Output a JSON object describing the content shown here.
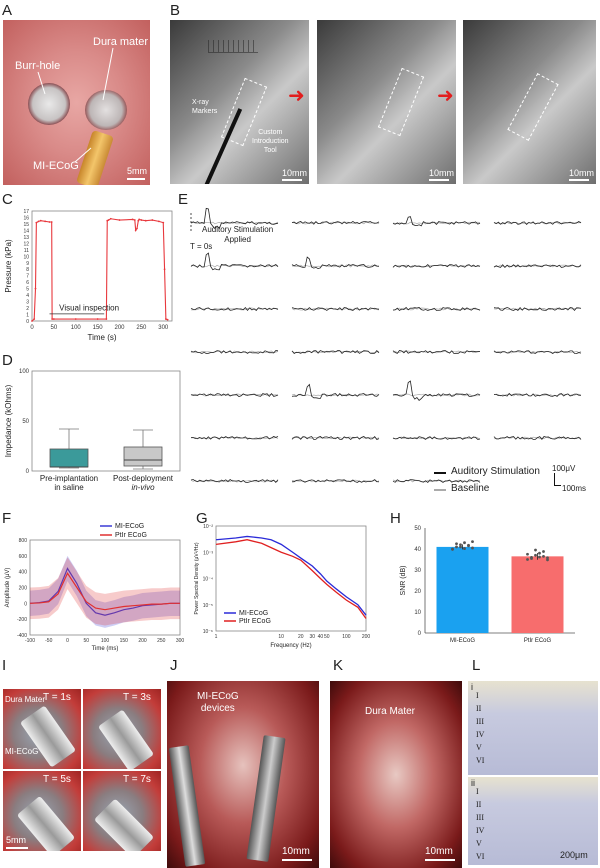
{
  "panels": {
    "A": {
      "label": "A",
      "burr_hole": "Burr-hole",
      "dura": "Dura mater",
      "device": "MI-ECoG",
      "scale": "5mm"
    },
    "B": {
      "label": "B",
      "markers": "X-ray\nMarkers",
      "tool": "Custom\nIntroduction\nTool",
      "scale": "10mm"
    },
    "C": {
      "label": "C",
      "annotation": "Visual inspection"
    },
    "D": {
      "label": "D"
    },
    "E": {
      "label": "E",
      "stim_label": "Auditory Stimulation\nApplied",
      "t0": "T = 0s",
      "legend_stim": "Auditory Stimulation",
      "legend_base": "Baseline",
      "scale_v": "100μV",
      "scale_t": "100ms"
    },
    "F": {
      "label": "F"
    },
    "G": {
      "label": "G"
    },
    "H": {
      "label": "H"
    },
    "I": {
      "label": "I",
      "dura": "Dura Mater",
      "device": "MI-ECoG",
      "scale": "5mm",
      "times": [
        "T = 1s",
        "T = 3s",
        "T = 5s",
        "T = 7s"
      ]
    },
    "J": {
      "label": "J",
      "devices": "MI-ECoG\ndevices",
      "scale": "10mm"
    },
    "K": {
      "label": "K",
      "dura": "Dura Mater",
      "scale": "10mm"
    },
    "L": {
      "label": "L",
      "i": "i",
      "ii": "ii",
      "layers": [
        "I",
        "II",
        "III",
        "IV",
        "V",
        "VI"
      ],
      "scale": "200μm"
    }
  },
  "chart_data": [
    {
      "id": "C",
      "type": "line",
      "xlabel": "Time (s)",
      "ylabel": "Pressure (kPa)",
      "xlim": [
        0,
        320
      ],
      "ylim": [
        0,
        17
      ],
      "xticks": [
        0,
        50,
        100,
        150,
        200,
        250,
        300
      ],
      "yticks": [
        0,
        1,
        2,
        3,
        4,
        5,
        6,
        7,
        8,
        9,
        10,
        11,
        12,
        13,
        14,
        15,
        16,
        17
      ],
      "series": [
        {
          "color": "#e8383d",
          "x": [
            0,
            5,
            8,
            10,
            15,
            20,
            30,
            40,
            45,
            46,
            50,
            100,
            150,
            170,
            172,
            175,
            180,
            200,
            230,
            235,
            237,
            240,
            243,
            245,
            250,
            260,
            275,
            290,
            300,
            303,
            306,
            310
          ],
          "y": [
            0,
            0.3,
            5,
            15.2,
            15.4,
            15.5,
            15.4,
            15.3,
            15.3,
            0.3,
            0.3,
            0.3,
            0.3,
            0.3,
            15.5,
            15.6,
            15.8,
            15.6,
            15.7,
            15.6,
            14,
            14.3,
            15.5,
            15.7,
            15.6,
            15.5,
            15.6,
            15.4,
            15.2,
            8,
            0.3,
            0.2
          ]
        }
      ],
      "annotation_span": [
        40,
        165
      ]
    },
    {
      "id": "D",
      "type": "box",
      "ylabel": "Impedance (kOhms)",
      "ylim": [
        0,
        100
      ],
      "yticks": [
        0,
        50,
        100
      ],
      "categories": [
        "Pre-implantation\nin saline",
        "Post-deployment\nin-vivo"
      ],
      "boxes": [
        {
          "min": 3,
          "q1": 4,
          "median": 4,
          "q3": 22,
          "max": 42,
          "color": "#3b9a9a"
        },
        {
          "min": 2,
          "q1": 5,
          "median": 11,
          "q3": 24,
          "max": 41,
          "color": "#c8c8c8"
        }
      ]
    },
    {
      "id": "F",
      "type": "line",
      "xlabel": "Time (ms)",
      "ylabel": "Amplitude (μV)",
      "xlim": [
        -100,
        300
      ],
      "ylim": [
        -400,
        800
      ],
      "xticks": [
        -100,
        -50,
        0,
        50,
        100,
        150,
        200,
        250,
        300
      ],
      "yticks": [
        -400,
        -200,
        0,
        200,
        400,
        600,
        800
      ],
      "series": [
        {
          "name": "MI-ECoG",
          "color": "#3b3bd6",
          "x": [
            -100,
            -75,
            -50,
            -25,
            0,
            25,
            50,
            75,
            100,
            125,
            150,
            175,
            200,
            225,
            250,
            275,
            300
          ],
          "y": [
            0,
            10,
            30,
            150,
            440,
            250,
            0,
            -120,
            -150,
            -120,
            -80,
            -60,
            -30,
            -20,
            -10,
            0,
            0
          ]
        },
        {
          "name": "PtIr ECoG",
          "color": "#e03030",
          "x": [
            -100,
            -75,
            -50,
            -25,
            0,
            25,
            50,
            75,
            100,
            125,
            150,
            175,
            200,
            225,
            250,
            275,
            300
          ],
          "y": [
            0,
            5,
            20,
            120,
            380,
            200,
            20,
            -60,
            -80,
            -60,
            -40,
            -30,
            -20,
            -10,
            -10,
            0,
            0
          ]
        }
      ]
    },
    {
      "id": "G",
      "type": "line",
      "xlabel": "Frequency (Hz)",
      "ylabel": "Power Spectral Density (μV²/Hz)",
      "xscale": "log",
      "yscale": "log",
      "xlim": [
        1,
        200
      ],
      "ylim": [
        1e-06,
        0.01
      ],
      "xticks": [
        1,
        10,
        20,
        30,
        40,
        50,
        100,
        200
      ],
      "yticks": [
        "10⁻⁶",
        "10⁻⁵",
        "10⁻⁴",
        "10⁻³",
        "10⁻²"
      ],
      "series": [
        {
          "name": "MI-ECoG",
          "color": "#2a2ad8",
          "x": [
            1,
            2,
            3,
            5,
            7,
            10,
            15,
            20,
            30,
            40,
            50,
            70,
            100,
            150,
            200
          ],
          "y": [
            0.003,
            0.0035,
            0.004,
            0.0035,
            0.003,
            0.002,
            0.001,
            0.0006,
            0.0003,
            0.00015,
            8e-05,
            4e-05,
            2e-05,
            1e-05,
            4e-06
          ]
        },
        {
          "name": "PtIr ECoG",
          "color": "#e02020",
          "x": [
            1,
            2,
            3,
            5,
            7,
            10,
            15,
            20,
            30,
            40,
            50,
            70,
            100,
            150,
            200
          ],
          "y": [
            0.002,
            0.0025,
            0.003,
            0.0022,
            0.0015,
            0.001,
            0.0007,
            0.0005,
            0.0002,
            0.0001,
            6e-05,
            3e-05,
            1.5e-05,
            8e-06,
            3e-06
          ]
        }
      ]
    },
    {
      "id": "H",
      "type": "bar",
      "ylabel": "SNR (dB)",
      "ylim": [
        0,
        50
      ],
      "yticks": [
        0,
        10,
        20,
        30,
        40,
        50
      ],
      "categories": [
        "MI-ECoG",
        "PtIr ECoG"
      ],
      "values": [
        41,
        36.5
      ],
      "errors": [
        1.2,
        1.6
      ],
      "colors": [
        "#1aa1f0",
        "#f76d6d"
      ],
      "points": [
        [
          40,
          41,
          42,
          43,
          41.5,
          40.5,
          39.8,
          42.5,
          41,
          40.2,
          41.8,
          43.5
        ],
        [
          35,
          36,
          37,
          38,
          36.5,
          34.8,
          37.5,
          35.5,
          39.5,
          36.2,
          38.8,
          35.8
        ]
      ]
    }
  ]
}
